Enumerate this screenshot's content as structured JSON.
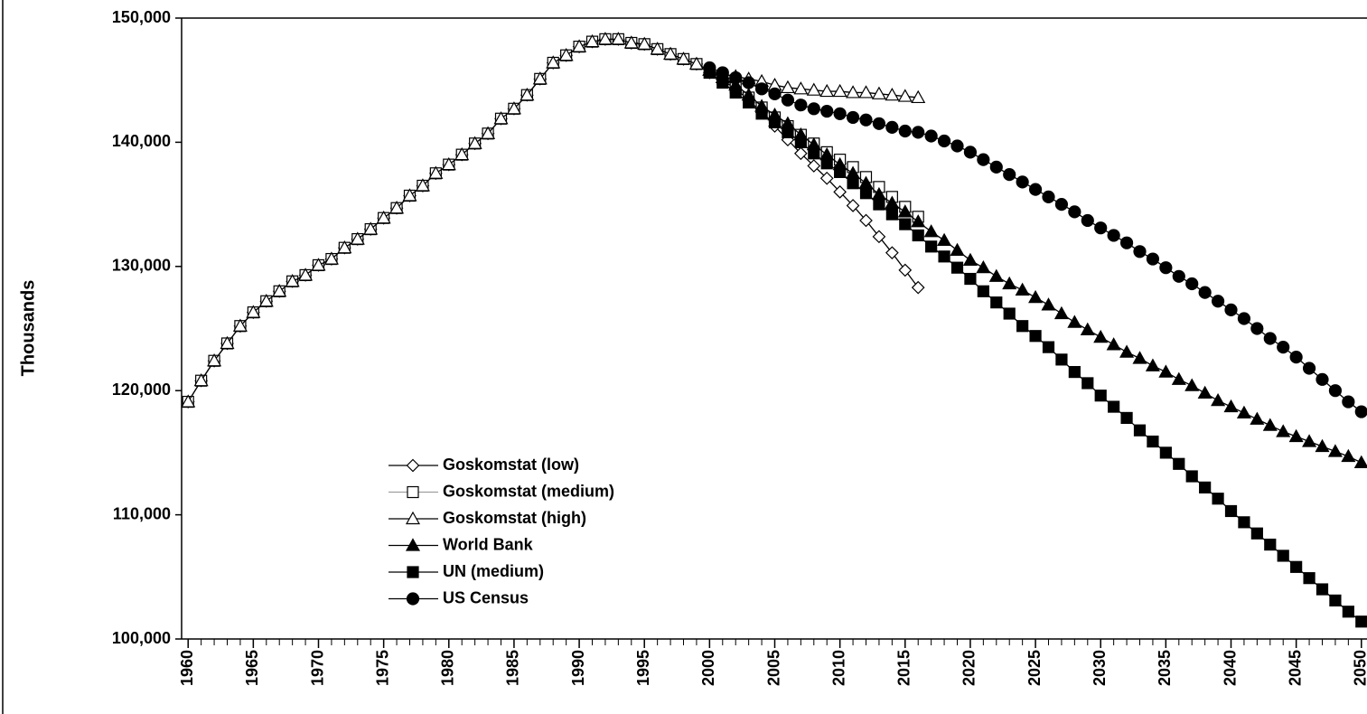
{
  "chart_data": {
    "type": "line",
    "y_label": "Thousands",
    "x": [
      1960,
      1961,
      1962,
      1963,
      1964,
      1965,
      1966,
      1967,
      1968,
      1969,
      1970,
      1971,
      1972,
      1973,
      1974,
      1975,
      1976,
      1977,
      1978,
      1979,
      1980,
      1981,
      1982,
      1983,
      1984,
      1985,
      1986,
      1987,
      1988,
      1989,
      1990,
      1991,
      1992,
      1993,
      1994,
      1995,
      1996,
      1997,
      1998,
      1999,
      2000,
      2001,
      2002,
      2003,
      2004,
      2005,
      2006,
      2007,
      2008,
      2009,
      2010,
      2011,
      2012,
      2013,
      2014,
      2015,
      2016,
      2017,
      2018,
      2019,
      2020,
      2021,
      2022,
      2023,
      2024,
      2025,
      2026,
      2027,
      2028,
      2029,
      2030,
      2031,
      2032,
      2033,
      2034,
      2035,
      2036,
      2037,
      2038,
      2039,
      2040,
      2041,
      2042,
      2043,
      2044,
      2045,
      2046,
      2047,
      2048,
      2049,
      2050
    ],
    "xlim": [
      1959.5,
      2050.5
    ],
    "xticks": [
      1960,
      1965,
      1970,
      1975,
      1980,
      1985,
      1990,
      1995,
      2000,
      2005,
      2010,
      2015,
      2020,
      2025,
      2030,
      2035,
      2040,
      2045,
      2050
    ],
    "ylim": [
      100000,
      150000
    ],
    "yticks": [
      {
        "value": 100000,
        "label": "100,000"
      },
      {
        "value": 110000,
        "label": "110,000"
      },
      {
        "value": 120000,
        "label": "120,000"
      },
      {
        "value": 130000,
        "label": "130,000"
      },
      {
        "value": 140000,
        "label": "140,000"
      },
      {
        "value": 150000,
        "label": "150,000"
      }
    ],
    "legend": "lower left",
    "series": [
      {
        "name": "Goskomstat (low)",
        "color": "#000000",
        "line_color": "#000000",
        "marker": "diamond",
        "filled": false,
        "values": [
          119100,
          120800,
          122400,
          123800,
          125200,
          126300,
          127200,
          128000,
          128800,
          129300,
          130100,
          130600,
          131500,
          132200,
          133000,
          133900,
          134700,
          135700,
          136500,
          137500,
          138200,
          139000,
          139900,
          140700,
          141900,
          142700,
          143800,
          145100,
          146400,
          147000,
          147700,
          148100,
          148300,
          148300,
          148000,
          147900,
          147500,
          147100,
          146700,
          146300,
          145600,
          145000,
          144300,
          143400,
          142400,
          141300,
          140200,
          139100,
          138100,
          137100,
          136000,
          134900,
          133700,
          132400,
          131100,
          129700,
          128300,
          null,
          null,
          null,
          null,
          null,
          null,
          null,
          null,
          null,
          null,
          null,
          null,
          null,
          null,
          null,
          null,
          null,
          null,
          null,
          null,
          null,
          null,
          null,
          null,
          null,
          null,
          null,
          null,
          null,
          null,
          null,
          null,
          null,
          null
        ]
      },
      {
        "name": "Goskomstat (medium)",
        "color": "#000000",
        "line_color": "#a0a0a0",
        "marker": "square",
        "filled": false,
        "values": [
          119100,
          120800,
          122400,
          123800,
          125200,
          126300,
          127200,
          128000,
          128800,
          129300,
          130100,
          130600,
          131500,
          132200,
          133000,
          133900,
          134700,
          135700,
          136500,
          137500,
          138200,
          139000,
          139900,
          140700,
          141900,
          142700,
          143800,
          145100,
          146400,
          147000,
          147700,
          148100,
          148300,
          148300,
          148000,
          147900,
          147500,
          147100,
          146700,
          146300,
          145600,
          145100,
          144400,
          143600,
          142800,
          142000,
          141300,
          140600,
          139900,
          139200,
          138600,
          138000,
          137200,
          136400,
          135600,
          134800,
          134000,
          null,
          null,
          null,
          null,
          null,
          null,
          null,
          null,
          null,
          null,
          null,
          null,
          null,
          null,
          null,
          null,
          null,
          null,
          null,
          null,
          null,
          null,
          null,
          null,
          null,
          null,
          null,
          null,
          null,
          null,
          null,
          null,
          null,
          null
        ]
      },
      {
        "name": "Goskomstat (high)",
        "color": "#000000",
        "line_color": "#000000",
        "marker": "triangle",
        "filled": false,
        "values": [
          119100,
          120800,
          122400,
          123800,
          125200,
          126300,
          127200,
          128000,
          128800,
          129300,
          130100,
          130600,
          131500,
          132200,
          133000,
          133900,
          134700,
          135700,
          136500,
          137500,
          138200,
          139000,
          139900,
          140700,
          141900,
          142700,
          143800,
          145100,
          146400,
          147000,
          147700,
          148100,
          148300,
          148300,
          148000,
          147900,
          147500,
          147100,
          146700,
          146300,
          145800,
          145500,
          145300,
          145100,
          144900,
          144600,
          144400,
          144300,
          144200,
          144100,
          144100,
          144000,
          144000,
          143900,
          143800,
          143700,
          143600,
          null,
          null,
          null,
          null,
          null,
          null,
          null,
          null,
          null,
          null,
          null,
          null,
          null,
          null,
          null,
          null,
          null,
          null,
          null,
          null,
          null,
          null,
          null,
          null,
          null,
          null,
          null,
          null,
          null,
          null,
          null,
          null,
          null,
          null
        ]
      },
      {
        "name": "World Bank",
        "color": "#000000",
        "line_color": "#000000",
        "marker": "triangle",
        "filled": true,
        "values": [
          null,
          null,
          null,
          null,
          null,
          null,
          null,
          null,
          null,
          null,
          null,
          null,
          null,
          null,
          null,
          null,
          null,
          null,
          null,
          null,
          null,
          null,
          null,
          null,
          null,
          null,
          null,
          null,
          null,
          null,
          null,
          null,
          null,
          null,
          null,
          null,
          null,
          null,
          null,
          null,
          145800,
          145200,
          144600,
          143800,
          142900,
          142200,
          141500,
          140600,
          139800,
          139000,
          138200,
          137500,
          136700,
          135800,
          135100,
          134400,
          133600,
          132800,
          132100,
          131300,
          130500,
          129900,
          129200,
          128600,
          128100,
          127500,
          126900,
          126200,
          125500,
          124900,
          124300,
          123700,
          123100,
          122600,
          122000,
          121500,
          120900,
          120400,
          119800,
          119200,
          118700,
          118200,
          117700,
          117200,
          116700,
          116300,
          115900,
          115500,
          115100,
          114700,
          114200
        ]
      },
      {
        "name": "UN (medium)",
        "color": "#000000",
        "line_color": "#000000",
        "marker": "square",
        "filled": true,
        "values": [
          null,
          null,
          null,
          null,
          null,
          null,
          null,
          null,
          null,
          null,
          null,
          null,
          null,
          null,
          null,
          null,
          null,
          null,
          null,
          null,
          null,
          null,
          null,
          null,
          null,
          null,
          null,
          null,
          null,
          null,
          null,
          null,
          null,
          null,
          null,
          null,
          null,
          null,
          null,
          null,
          145600,
          144800,
          144000,
          143200,
          142300,
          141600,
          140800,
          140000,
          139100,
          138300,
          137600,
          136700,
          135900,
          135000,
          134200,
          133400,
          132500,
          131600,
          130800,
          129900,
          129000,
          128000,
          127100,
          126200,
          125200,
          124400,
          123500,
          122500,
          121500,
          120600,
          119600,
          118700,
          117800,
          116800,
          115900,
          115000,
          114100,
          113100,
          112200,
          111300,
          110300,
          109400,
          108500,
          107600,
          106700,
          105800,
          104900,
          104000,
          103100,
          102200,
          101400
        ]
      },
      {
        "name": "US Census",
        "color": "#000000",
        "line_color": "#000000",
        "marker": "circle",
        "filled": true,
        "values": [
          null,
          null,
          null,
          null,
          null,
          null,
          null,
          null,
          null,
          null,
          null,
          null,
          null,
          null,
          null,
          null,
          null,
          null,
          null,
          null,
          null,
          null,
          null,
          null,
          null,
          null,
          null,
          null,
          null,
          null,
          null,
          null,
          null,
          null,
          null,
          null,
          null,
          null,
          null,
          null,
          146000,
          145600,
          145200,
          144800,
          144300,
          143900,
          143400,
          143000,
          142700,
          142500,
          142300,
          142000,
          141800,
          141500,
          141200,
          140900,
          140800,
          140500,
          140100,
          139700,
          139200,
          138600,
          138000,
          137400,
          136800,
          136200,
          135600,
          135000,
          134400,
          133700,
          133100,
          132500,
          131900,
          131200,
          130600,
          129900,
          129200,
          128600,
          127900,
          127200,
          126500,
          125800,
          125000,
          124200,
          123500,
          122700,
          121800,
          120900,
          120000,
          119100,
          118300
        ]
      }
    ]
  }
}
